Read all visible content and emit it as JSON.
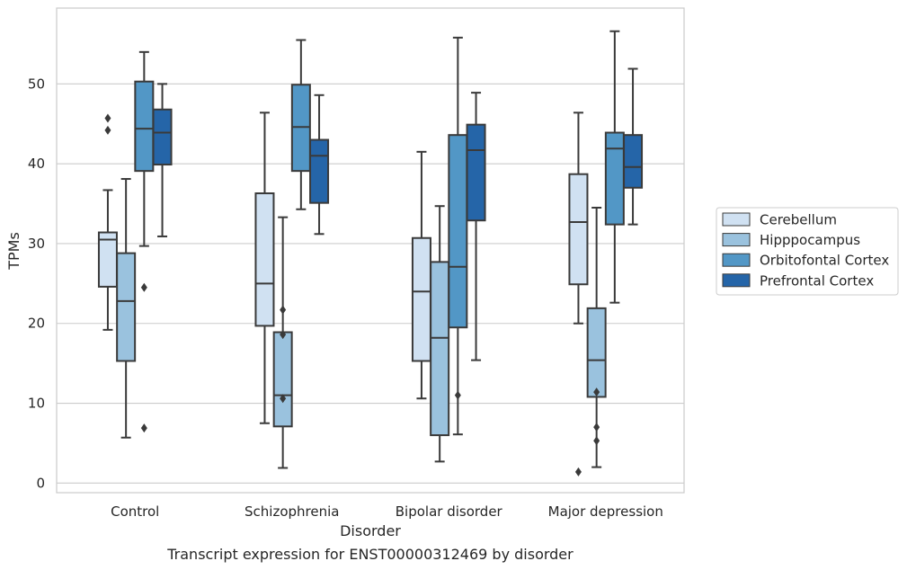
{
  "chart_data": {
    "type": "box",
    "caption": "Transcript expression for ENST00000312469 by disorder",
    "xlabel": "Disorder",
    "ylabel": "TPMs",
    "ylim": [
      -1.2,
      59.5
    ],
    "yticks": [
      0,
      10,
      20,
      30,
      40,
      50
    ],
    "grid": true,
    "legend_position": "right",
    "categories": [
      "Control",
      "Schizophrenia",
      "Bipolar disorder",
      "Major depression"
    ],
    "series": [
      {
        "name": "Cerebellum",
        "color": "#d0e1f2",
        "boxes": [
          {
            "whisker_low": 19.2,
            "q1": 24.6,
            "median": 30.5,
            "q3": 31.4,
            "whisker_high": 36.7,
            "outliers": [
              44.2,
              45.7
            ]
          },
          {
            "whisker_low": 7.5,
            "q1": 19.7,
            "median": 25.0,
            "q3": 36.3,
            "whisker_high": 46.4,
            "outliers": []
          },
          {
            "whisker_low": 10.6,
            "q1": 15.3,
            "median": 24.0,
            "q3": 30.7,
            "whisker_high": 41.5,
            "outliers": []
          },
          {
            "whisker_low": 20.0,
            "q1": 24.9,
            "median": 32.7,
            "q3": 38.7,
            "whisker_high": 46.4,
            "outliers": [
              1.4
            ]
          }
        ]
      },
      {
        "name": "Hipppocampus",
        "color": "#9ac2de",
        "boxes": [
          {
            "whisker_low": 5.7,
            "q1": 15.3,
            "median": 22.8,
            "q3": 28.8,
            "whisker_high": 38.1,
            "outliers": []
          },
          {
            "whisker_low": 1.9,
            "q1": 7.1,
            "median": 11.0,
            "q3": 18.9,
            "whisker_high": 33.3,
            "outliers": [
              10.6,
              18.6,
              21.7
            ]
          },
          {
            "whisker_low": 2.7,
            "q1": 6.0,
            "median": 18.2,
            "q3": 27.7,
            "whisker_high": 34.7,
            "outliers": []
          },
          {
            "whisker_low": 2.0,
            "q1": 10.8,
            "median": 15.4,
            "q3": 21.9,
            "whisker_high": 34.5,
            "outliers": [
              5.3,
              7.0,
              11.4
            ]
          }
        ]
      },
      {
        "name": "Orbitofontal Cortex",
        "color": "#5297c6",
        "boxes": [
          {
            "whisker_low": 29.7,
            "q1": 39.1,
            "median": 44.4,
            "q3": 50.3,
            "whisker_high": 54.0,
            "outliers": [
              6.9,
              24.5
            ]
          },
          {
            "whisker_low": 34.3,
            "q1": 39.1,
            "median": 44.6,
            "q3": 49.9,
            "whisker_high": 55.5,
            "outliers": []
          },
          {
            "whisker_low": 6.1,
            "q1": 19.5,
            "median": 27.1,
            "q3": 43.6,
            "whisker_high": 55.8,
            "outliers": [
              11.0
            ]
          },
          {
            "whisker_low": 22.6,
            "q1": 32.4,
            "median": 41.9,
            "q3": 43.9,
            "whisker_high": 56.6,
            "outliers": []
          }
        ]
      },
      {
        "name": "Prefrontal Cortex",
        "color": "#2565a8",
        "boxes": [
          {
            "whisker_low": 30.9,
            "q1": 39.9,
            "median": 43.9,
            "q3": 46.8,
            "whisker_high": 50.0,
            "outliers": []
          },
          {
            "whisker_low": 31.2,
            "q1": 35.1,
            "median": 41.0,
            "q3": 43.0,
            "whisker_high": 48.6,
            "outliers": []
          },
          {
            "whisker_low": 15.4,
            "q1": 32.9,
            "median": 41.7,
            "q3": 44.9,
            "whisker_high": 48.9,
            "outliers": []
          },
          {
            "whisker_low": 32.4,
            "q1": 37.0,
            "median": 39.6,
            "q3": 43.6,
            "whisker_high": 51.9,
            "outliers": []
          }
        ]
      }
    ]
  }
}
